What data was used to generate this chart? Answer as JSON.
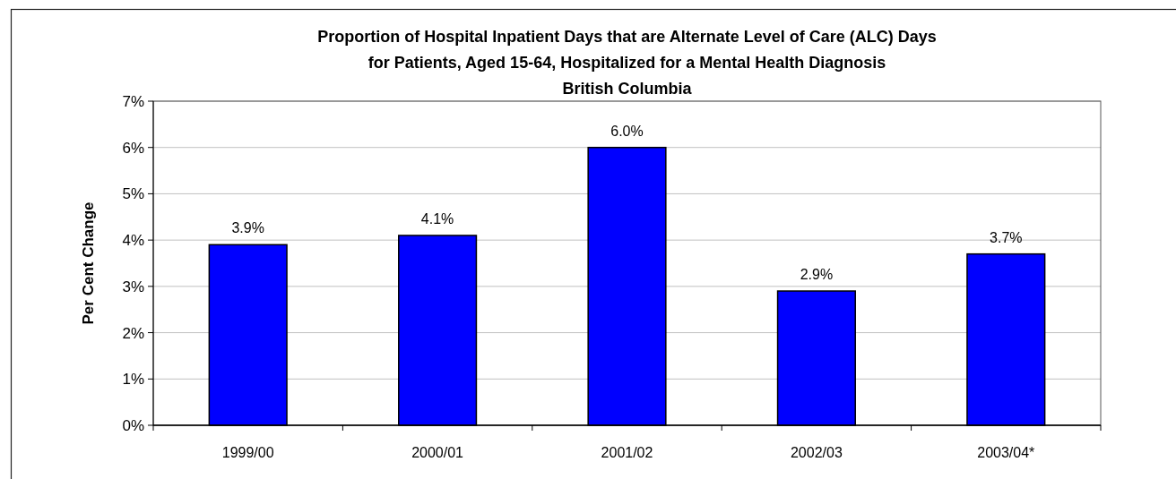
{
  "chart_data": {
    "type": "bar",
    "title": "Proportion of Hospital Inpatient Days that are Alternate Level of Care (ALC) Days\nfor Patients, Aged 15-64, Hospitalized for a Mental Health Diagnosis\nBritish Columbia",
    "ylabel": "Per Cent Change",
    "categories": [
      "1999/00",
      "2000/01",
      "2001/02",
      "2002/03",
      "2003/04*"
    ],
    "values": [
      3.9,
      4.1,
      6.0,
      2.9,
      3.7
    ],
    "value_labels": [
      "3.9%",
      "4.1%",
      "6.0%",
      "2.9%",
      "3.7%"
    ],
    "color": "#0000ff",
    "ylim": [
      0,
      7
    ],
    "yticks": [
      {
        "value": 0,
        "label": "0%"
      },
      {
        "value": 1,
        "label": "1%"
      },
      {
        "value": 2,
        "label": "2%"
      },
      {
        "value": 3,
        "label": "3%"
      },
      {
        "value": 4,
        "label": "4%"
      },
      {
        "value": 5,
        "label": "5%"
      },
      {
        "value": 6,
        "label": "6%"
      },
      {
        "value": 7,
        "label": "7%"
      }
    ],
    "grid": "y"
  }
}
